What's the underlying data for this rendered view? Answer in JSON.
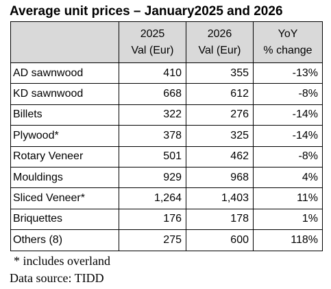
{
  "title": "Average unit prices – January2025 and 2026",
  "table": {
    "headers": {
      "label": "",
      "y2025": [
        "2025",
        "Val (Eur)"
      ],
      "y2026": [
        "2026",
        "Val (Eur)"
      ],
      "yoy": [
        "YoY",
        "% change"
      ]
    },
    "rows": [
      {
        "product": "AD sawnwood",
        "v2025": "410",
        "v2026": "355",
        "yoy": "-13%"
      },
      {
        "product": "KD sawnwood",
        "v2025": "668",
        "v2026": "612",
        "yoy": "-8%"
      },
      {
        "product": "Billets",
        "v2025": "322",
        "v2026": "276",
        "yoy": "-14%"
      },
      {
        "product": "Plywood*",
        "v2025": "378",
        "v2026": "325",
        "yoy": "-14%"
      },
      {
        "product": "Rotary Veneer",
        "v2025": "501",
        "v2026": "462",
        "yoy": "-8%"
      },
      {
        "product": "Mouldings",
        "v2025": "929",
        "v2026": "968",
        "yoy": "4%"
      },
      {
        "product": "Sliced Veneer*",
        "v2025": "1,264",
        "v2026": "1,403",
        "yoy": "11%"
      },
      {
        "product": "Briquettes",
        "v2025": "176",
        "v2026": "178",
        "yoy": "1%"
      },
      {
        "product": "Others (8)",
        "v2025": "275",
        "v2026": "600",
        "yoy": "118%"
      }
    ]
  },
  "footnote": "* includes overland",
  "source": "Data source: TIDD"
}
